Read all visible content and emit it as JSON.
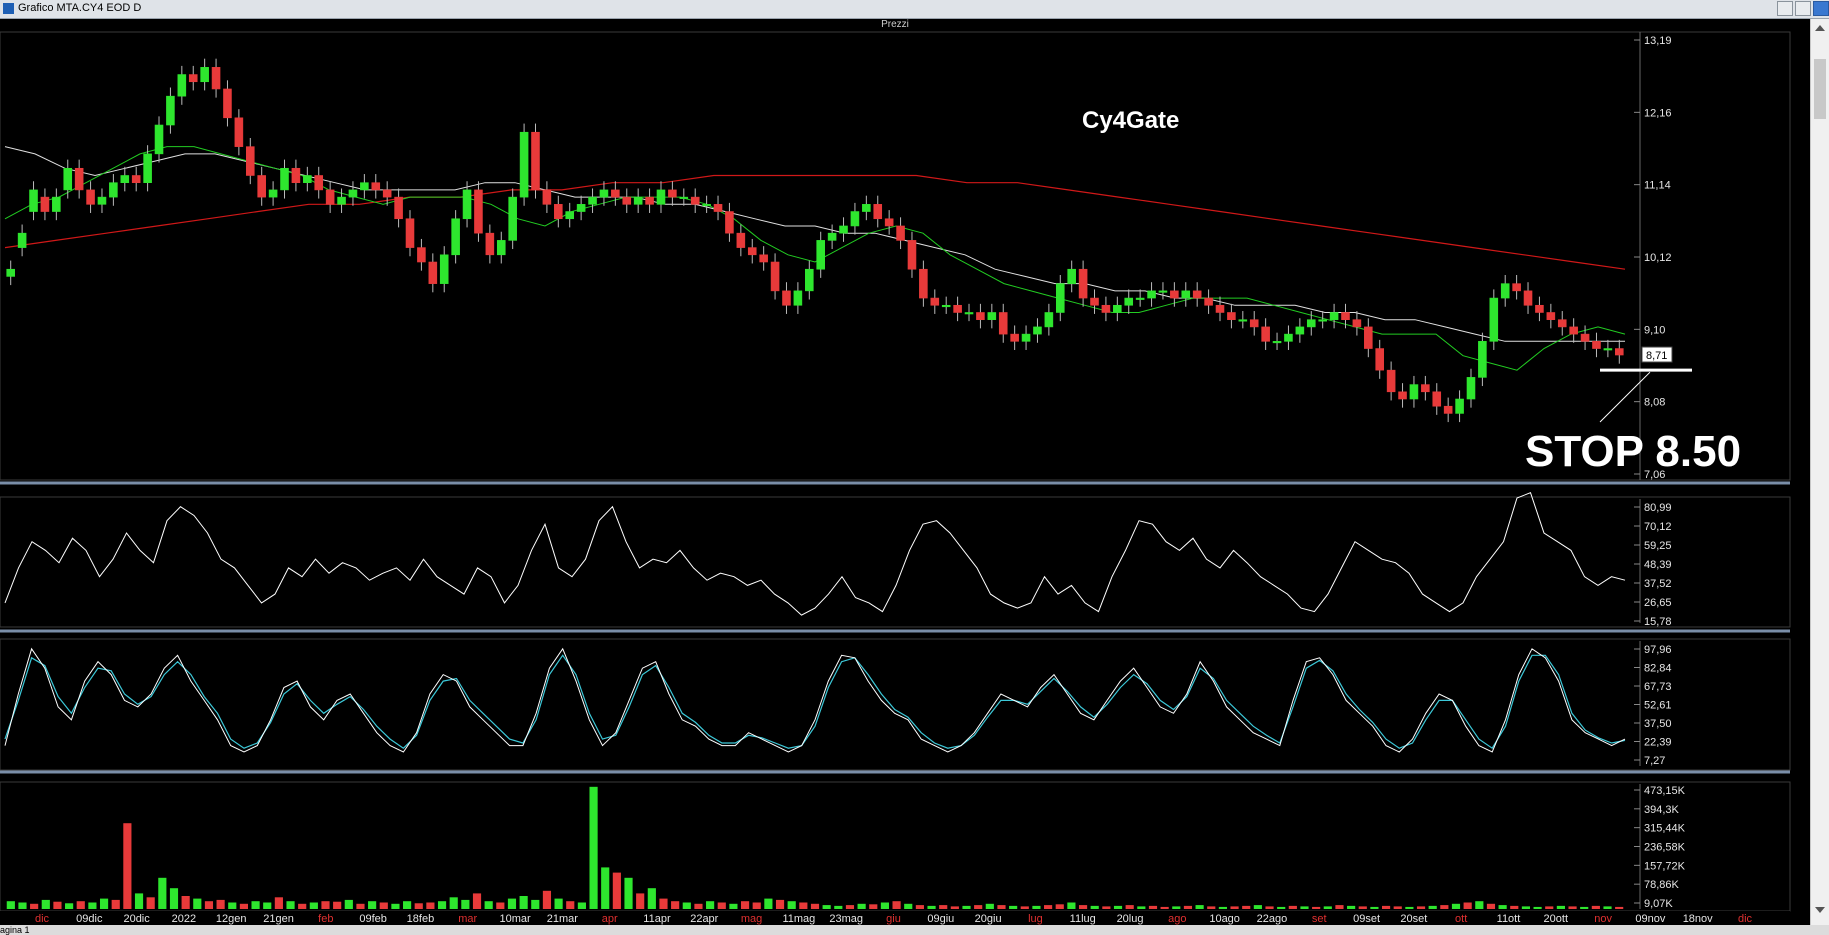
{
  "window": {
    "title": "Grafico MTA.CY4 EOD D"
  },
  "status": {
    "text": "agina 1"
  },
  "panel": {
    "title": "Prezzi"
  },
  "annotations": {
    "title": "Cy4Gate",
    "stop": "STOP 8.50",
    "last_price": "8,71"
  },
  "colors": {
    "background": "#000000",
    "candle_up": "#2ee62e",
    "candle_down": "#e83a3a",
    "ma_fast": "#22cc22",
    "ma_mid": "#e0e0e0",
    "ma_slow": "#d01818",
    "oscillator": "#ffffff",
    "stoch_k": "#ffffff",
    "stoch_d": "#3cc8d8",
    "month_label": "#e03030"
  },
  "chart_data": [
    {
      "type": "candlestick",
      "panel": "Prezzi",
      "ylim": [
        7.06,
        13.19
      ],
      "y_ticks": [
        "13,19",
        "12,16",
        "11,14",
        "10,12",
        "9,10",
        "8,08",
        "7,06"
      ],
      "x_labels": [
        "dic",
        "09dic",
        "20dic",
        "2022",
        "12gen",
        "21gen",
        "feb",
        "09feb",
        "18feb",
        "mar",
        "10mar",
        "21mar",
        "apr",
        "11apr",
        "22apr",
        "mag",
        "11mag",
        "23mag",
        "giu",
        "09giu",
        "20giu",
        "lug",
        "11lug",
        "20lug",
        "ago",
        "10ago",
        "22ago",
        "set",
        "09set",
        "20set",
        "ott",
        "11ott",
        "20ott",
        "nov",
        "09nov",
        "18nov",
        "dic"
      ],
      "month_labels": [
        "dic",
        "feb",
        "mar",
        "apr",
        "mag",
        "giu",
        "lug",
        "ago",
        "set",
        "ott",
        "nov",
        "dic"
      ],
      "close": [
        9.9,
        10.4,
        11.0,
        10.7,
        10.9,
        11.3,
        11.0,
        10.8,
        10.9,
        11.1,
        11.2,
        11.1,
        11.5,
        11.9,
        12.3,
        12.6,
        12.5,
        12.7,
        12.4,
        12.0,
        11.6,
        11.2,
        10.9,
        11.0,
        11.3,
        11.1,
        11.2,
        11.0,
        10.8,
        10.9,
        11.0,
        11.1,
        11.0,
        10.9,
        10.6,
        10.2,
        10.0,
        9.7,
        10.1,
        10.6,
        11.0,
        10.4,
        10.1,
        10.3,
        10.9,
        11.8,
        11.0,
        10.8,
        10.6,
        10.7,
        10.8,
        10.9,
        11.0,
        10.9,
        10.8,
        10.9,
        10.8,
        11.0,
        10.9,
        10.9,
        10.8,
        10.8,
        10.7,
        10.4,
        10.2,
        10.1,
        10.0,
        9.6,
        9.4,
        9.6,
        9.9,
        10.3,
        10.4,
        10.5,
        10.7,
        10.8,
        10.6,
        10.5,
        10.3,
        9.9,
        9.5,
        9.4,
        9.4,
        9.3,
        9.3,
        9.2,
        9.3,
        9.0,
        8.9,
        9.0,
        9.1,
        9.3,
        9.7,
        9.9,
        9.5,
        9.4,
        9.3,
        9.4,
        9.5,
        9.5,
        9.6,
        9.6,
        9.5,
        9.6,
        9.5,
        9.4,
        9.3,
        9.2,
        9.2,
        9.1,
        8.9,
        8.9,
        9.0,
        9.1,
        9.2,
        9.2,
        9.3,
        9.2,
        9.1,
        8.8,
        8.5,
        8.2,
        8.1,
        8.3,
        8.2,
        8.0,
        7.9,
        8.1,
        8.4,
        8.9,
        9.5,
        9.7,
        9.6,
        9.4,
        9.3,
        9.2,
        9.1,
        9.0,
        8.9,
        8.8,
        8.8,
        8.71
      ],
      "open": [
        9.8,
        10.2,
        10.7,
        10.9,
        10.7,
        11.0,
        11.3,
        11.0,
        10.8,
        10.9,
        11.1,
        11.2,
        11.1,
        11.5,
        11.9,
        12.3,
        12.6,
        12.5,
        12.7,
        12.4,
        12.0,
        11.6,
        11.2,
        10.9,
        11.0,
        11.3,
        11.1,
        11.2,
        11.0,
        10.8,
        10.9,
        11.0,
        11.1,
        11.0,
        10.9,
        10.6,
        10.2,
        10.0,
        9.7,
        10.1,
        10.6,
        11.0,
        10.4,
        10.1,
        10.3,
        10.9,
        11.8,
        11.0,
        10.8,
        10.6,
        10.7,
        10.8,
        10.9,
        11.0,
        10.9,
        10.8,
        10.9,
        10.8,
        11.0,
        10.9,
        10.9,
        10.8,
        10.8,
        10.7,
        10.4,
        10.2,
        10.1,
        10.0,
        9.6,
        9.4,
        9.6,
        9.9,
        10.3,
        10.4,
        10.5,
        10.7,
        10.8,
        10.6,
        10.5,
        10.3,
        9.9,
        9.5,
        9.4,
        9.4,
        9.3,
        9.3,
        9.2,
        9.3,
        9.0,
        8.9,
        9.0,
        9.1,
        9.3,
        9.7,
        9.9,
        9.5,
        9.4,
        9.3,
        9.4,
        9.5,
        9.5,
        9.6,
        9.6,
        9.5,
        9.6,
        9.5,
        9.4,
        9.3,
        9.2,
        9.2,
        9.1,
        8.9,
        8.9,
        9.0,
        9.1,
        9.2,
        9.2,
        9.3,
        9.2,
        9.1,
        8.8,
        8.5,
        8.2,
        8.1,
        8.3,
        8.2,
        8.0,
        7.9,
        8.1,
        8.4,
        8.9,
        9.5,
        9.7,
        9.6,
        9.4,
        9.3,
        9.2,
        9.1,
        9.0,
        8.9,
        8.8,
        8.8
      ],
      "ma_fast": [
        10.6,
        10.8,
        10.9,
        11.1,
        11.3,
        11.5,
        11.6,
        11.6,
        11.5,
        11.4,
        11.3,
        11.2,
        11.0,
        10.9,
        10.8,
        10.9,
        10.9,
        10.9,
        10.8,
        10.6,
        10.5,
        10.7,
        10.8,
        10.9,
        10.9,
        10.9,
        10.8,
        10.6,
        10.3,
        10.1,
        10.0,
        10.2,
        10.4,
        10.5,
        10.4,
        10.1,
        9.9,
        9.7,
        9.6,
        9.5,
        9.4,
        9.3,
        9.3,
        9.4,
        9.5,
        9.5,
        9.5,
        9.4,
        9.3,
        9.2,
        9.1,
        9.0,
        9.0,
        9.0,
        8.7,
        8.6,
        8.5,
        8.8,
        9.0,
        9.1,
        9.0
      ],
      "ma_mid": [
        11.6,
        11.5,
        11.3,
        11.2,
        11.3,
        11.4,
        11.5,
        11.5,
        11.4,
        11.3,
        11.2,
        11.1,
        11.0,
        11.0,
        11.0,
        11.0,
        11.1,
        11.1,
        11.0,
        10.9,
        10.9,
        10.9,
        10.8,
        10.8,
        10.7,
        10.6,
        10.5,
        10.5,
        10.4,
        10.4,
        10.3,
        10.2,
        10.1,
        9.9,
        9.8,
        9.7,
        9.7,
        9.6,
        9.6,
        9.5,
        9.5,
        9.4,
        9.4,
        9.4,
        9.3,
        9.3,
        9.2,
        9.2,
        9.1,
        9.0,
        8.9,
        8.9,
        8.9,
        8.9,
        8.9
      ],
      "ma_slow": [
        10.2,
        10.3,
        10.4,
        10.5,
        10.6,
        10.7,
        10.8,
        10.8,
        10.9,
        10.9,
        11.0,
        11.0,
        11.1,
        11.1,
        11.2,
        11.2,
        11.2,
        11.2,
        11.2,
        11.1,
        11.1,
        11.0,
        10.9,
        10.8,
        10.7,
        10.6,
        10.5,
        10.4,
        10.3,
        10.2,
        10.1,
        10.0,
        9.9
      ]
    },
    {
      "type": "line",
      "panel": "oscillator",
      "ylim": [
        15.78,
        80.99
      ],
      "y_ticks": [
        "80,99",
        "70,12",
        "59,25",
        "48,39",
        "37,52",
        "26,65",
        "15,78"
      ],
      "values": [
        25,
        45,
        60,
        55,
        48,
        62,
        55,
        40,
        50,
        65,
        55,
        48,
        72,
        80,
        75,
        65,
        50,
        45,
        35,
        25,
        30,
        45,
        40,
        50,
        42,
        48,
        45,
        38,
        42,
        45,
        38,
        50,
        40,
        35,
        30,
        45,
        40,
        25,
        35,
        55,
        70,
        45,
        40,
        50,
        72,
        80,
        60,
        45,
        50,
        48,
        55,
        45,
        38,
        42,
        40,
        35,
        38,
        30,
        25,
        18,
        22,
        30,
        40,
        28,
        25,
        20,
        35,
        55,
        70,
        72,
        65,
        55,
        45,
        30,
        25,
        22,
        25,
        40,
        30,
        35,
        25,
        20,
        40,
        55,
        72,
        70,
        60,
        55,
        62,
        50,
        45,
        55,
        48,
        40,
        35,
        30,
        22,
        20,
        30,
        45,
        60,
        55,
        50,
        48,
        42,
        30,
        25,
        20,
        25,
        40,
        50,
        60,
        85,
        88,
        65,
        60,
        55,
        40,
        35,
        40,
        38
      ]
    },
    {
      "type": "line",
      "panel": "stochastic",
      "ylim": [
        7.27,
        97.96
      ],
      "y_ticks": [
        "97,96",
        "82,84",
        "67,73",
        "52,61",
        "37,50",
        "22,39",
        "7,27"
      ],
      "series": [
        {
          "values": [
            20,
            60,
            95,
            80,
            50,
            40,
            70,
            85,
            75,
            55,
            50,
            60,
            80,
            90,
            70,
            55,
            40,
            20,
            15,
            20,
            40,
            65,
            70,
            50,
            40,
            55,
            60,
            45,
            30,
            20,
            15,
            30,
            60,
            75,
            70,
            50,
            40,
            30,
            20,
            20,
            45,
            80,
            95,
            70,
            40,
            20,
            30,
            55,
            80,
            85,
            60,
            40,
            35,
            25,
            20,
            20,
            30,
            25,
            20,
            15,
            20,
            40,
            70,
            90,
            88,
            70,
            55,
            45,
            40,
            25,
            20,
            15,
            20,
            30,
            45,
            60,
            55,
            50,
            65,
            75,
            60,
            45,
            40,
            55,
            70,
            80,
            65,
            50,
            45,
            60,
            85,
            70,
            50,
            40,
            30,
            25,
            20,
            55,
            85,
            88,
            75,
            55,
            45,
            35,
            20,
            15,
            25,
            45,
            60,
            55,
            35,
            20,
            15,
            40,
            75,
            95,
            88,
            70,
            40,
            30,
            25,
            20,
            25
          ]
        },
        {
          "values": [
            25,
            55,
            88,
            82,
            58,
            45,
            65,
            80,
            78,
            60,
            52,
            58,
            75,
            85,
            75,
            58,
            45,
            25,
            18,
            22,
            38,
            60,
            68,
            55,
            45,
            52,
            58,
            48,
            35,
            25,
            18,
            28,
            55,
            70,
            72,
            55,
            45,
            35,
            25,
            22,
            40,
            75,
            90,
            75,
            45,
            25,
            28,
            50,
            75,
            82,
            65,
            45,
            38,
            28,
            22,
            22,
            28,
            26,
            22,
            18,
            20,
            35,
            65,
            85,
            88,
            75,
            60,
            48,
            42,
            30,
            22,
            18,
            20,
            28,
            42,
            55,
            55,
            52,
            62,
            72,
            62,
            50,
            42,
            52,
            65,
            75,
            68,
            55,
            48,
            58,
            80,
            72,
            55,
            45,
            35,
            28,
            22,
            50,
            80,
            86,
            78,
            60,
            48,
            38,
            25,
            18,
            22,
            40,
            55,
            55,
            40,
            25,
            18,
            35,
            70,
            90,
            90,
            75,
            45,
            32,
            26,
            22,
            24
          ]
        }
      ]
    },
    {
      "type": "bar",
      "panel": "volume",
      "ylim": [
        0,
        473.15
      ],
      "y_ticks": [
        "473,15K",
        "394,3K",
        "315,44K",
        "236,58K",
        "157,72K",
        "78,86K",
        "9,07K"
      ],
      "values": [
        30,
        25,
        20,
        35,
        28,
        22,
        30,
        25,
        40,
        35,
        330,
        60,
        45,
        120,
        80,
        50,
        40,
        30,
        35,
        25,
        20,
        30,
        25,
        45,
        30,
        20,
        25,
        30,
        28,
        35,
        20,
        30,
        25,
        20,
        30,
        22,
        25,
        30,
        45,
        35,
        60,
        30,
        25,
        40,
        50,
        35,
        70,
        40,
        30,
        25,
        470,
        160,
        140,
        120,
        60,
        80,
        40,
        30,
        25,
        20,
        30,
        25,
        20,
        30,
        25,
        40,
        35,
        30,
        25,
        20,
        15,
        12,
        15,
        20,
        18,
        25,
        30,
        20,
        15,
        12,
        15,
        10,
        12,
        15,
        20,
        15,
        12,
        10,
        12,
        15,
        18,
        25,
        15,
        12,
        10,
        12,
        15,
        10,
        12,
        8,
        10,
        12,
        15,
        10,
        8,
        10,
        12,
        15,
        10,
        8,
        12,
        10,
        8,
        10,
        15,
        12,
        10,
        8,
        12,
        10,
        8,
        10,
        12,
        15,
        20,
        25,
        30,
        20,
        15,
        12,
        10,
        8,
        10,
        12,
        10,
        8,
        12,
        10,
        8
      ],
      "up_flags": [
        1,
        1,
        0,
        1,
        0,
        1,
        0,
        1,
        1,
        0,
        0,
        1,
        0,
        1,
        1,
        0,
        1,
        0,
        0,
        1,
        0,
        1,
        1,
        0,
        1,
        0,
        1,
        0,
        0,
        1,
        0,
        1,
        0,
        1,
        1,
        0,
        0,
        1,
        1,
        1,
        0,
        1,
        0,
        1,
        1,
        1,
        0,
        1,
        0,
        1,
        1,
        1,
        0,
        1,
        0,
        1,
        0,
        0,
        1,
        0,
        1,
        0,
        1,
        0,
        0,
        1,
        0,
        1,
        0,
        0,
        1,
        1,
        0,
        1,
        0,
        1,
        0,
        1,
        0,
        1,
        0,
        0,
        1,
        0,
        1,
        0,
        1,
        0,
        1,
        0,
        0,
        1,
        0,
        1,
        0,
        1,
        0,
        1,
        0,
        0,
        1,
        0,
        1,
        0,
        1,
        0,
        0,
        1,
        0,
        1,
        0,
        1,
        0,
        1,
        0,
        1,
        0,
        1,
        0,
        0,
        1,
        0,
        1,
        0,
        1,
        0,
        1,
        0,
        1,
        0,
        1,
        1,
        0,
        1,
        0,
        1,
        0,
        1,
        0
      ]
    }
  ]
}
